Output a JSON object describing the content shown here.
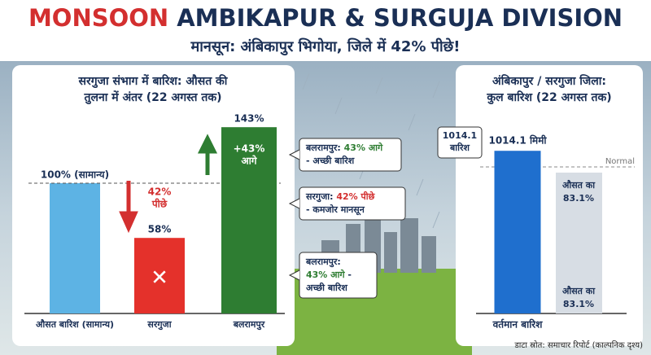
{
  "header": {
    "title_highlight": "MONSOON",
    "title_rest": "AMBIKAPUR & SURGUJA DIVISION",
    "subtitle": "मानसून: अंबिकापुर भिगोया, जिले में 42% पीछे!"
  },
  "chart_data": [
    {
      "type": "bar",
      "title_lines": [
        "सरगुजा संभाग में बारिश: औसत की",
        "तुलना में अंतर (22 अगस्त तक)"
      ],
      "categories": [
        "औसत बारिश (सामान्य)",
        "सरगुजा",
        "बलरामपुर"
      ],
      "values": [
        100,
        58,
        143
      ],
      "value_labels": [
        "100% (सामान्य)",
        "58%",
        "143%"
      ],
      "colors": [
        "#5db3e4",
        "#e4312b",
        "#2e7d32"
      ],
      "annotations": [
        {
          "lines": [
            "42%",
            "पीछे"
          ]
        },
        {
          "lines": [
            "+43%",
            "आगे"
          ]
        }
      ]
    },
    {
      "type": "bar",
      "title_lines": [
        "अंबिकापुर / सरगुजा जिला:",
        "कुल बारिश (22 अगस्त तक)"
      ],
      "categories": [
        "वर्तमान बारिश"
      ],
      "values": [
        1014.1
      ],
      "value_labels": [
        "1014.1 मिमी"
      ],
      "color": "#1f6fce",
      "reference_label": "Normal",
      "callout_lines": [
        "1014.1",
        "बारिश"
      ],
      "comparison_lines": [
        "औसत का",
        "83.1%"
      ]
    }
  ],
  "callouts": [
    {
      "lines": [
        [
          "बलरामपुर: ",
          "43% आगे"
        ],
        [
          "- अच्छी बारिश"
        ]
      ],
      "accent": "#2e7d32"
    },
    {
      "lines": [
        [
          "सरगुजा: ",
          "42% पीछे"
        ],
        [
          "- कमजोर मानसून"
        ]
      ],
      "accent": "#d32f2f"
    },
    {
      "lines": [
        [
          "बलरामपुर:"
        ],
        [
          "43% आगे",
          " -"
        ],
        [
          "अच्छी बारिश"
        ]
      ],
      "accent": "#2e7d32"
    }
  ],
  "source": "डाटा स्रोत: समाचार रिपोर्ट (काल्पनिक दृश्य)"
}
